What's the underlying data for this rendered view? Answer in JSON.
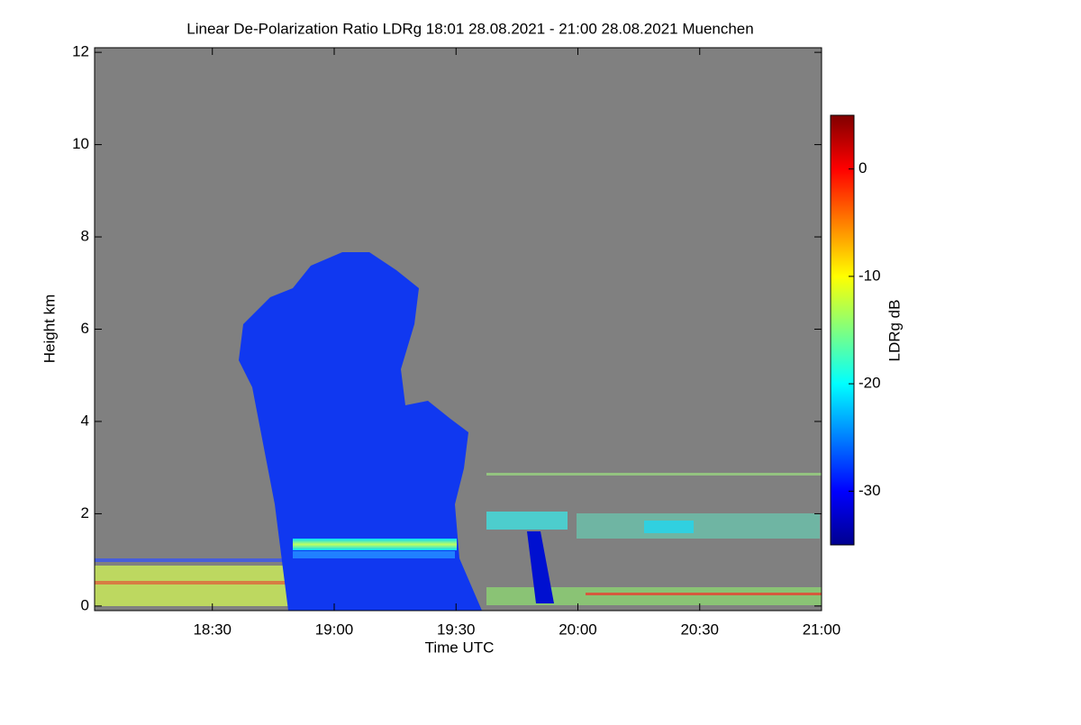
{
  "chart_data": {
    "type": "heatmap",
    "title": "Linear De-Polarization Ratio LDRg   18:01 28.08.2021 - 21:00 28.08.2021 Muenchen",
    "x_label": "Time UTC",
    "y_label": "Height km",
    "xlim": [
      1081,
      1260
    ],
    "xticks": [
      {
        "value": 1110,
        "label": "18:30"
      },
      {
        "value": 1140,
        "label": "19:00"
      },
      {
        "value": 1170,
        "label": "19:30"
      },
      {
        "value": 1200,
        "label": "20:00"
      },
      {
        "value": 1230,
        "label": "20:30"
      },
      {
        "value": 1260,
        "label": "21:00"
      }
    ],
    "ylim": [
      -0.1,
      12.1
    ],
    "yticks": [
      0,
      2,
      4,
      6,
      8,
      10,
      12
    ],
    "colorbar": {
      "label": "LDRg dB",
      "colormap": "jet",
      "zlim": [
        -35,
        5
      ],
      "ticks": [
        0,
        -10,
        -20,
        -30
      ]
    }
  }
}
